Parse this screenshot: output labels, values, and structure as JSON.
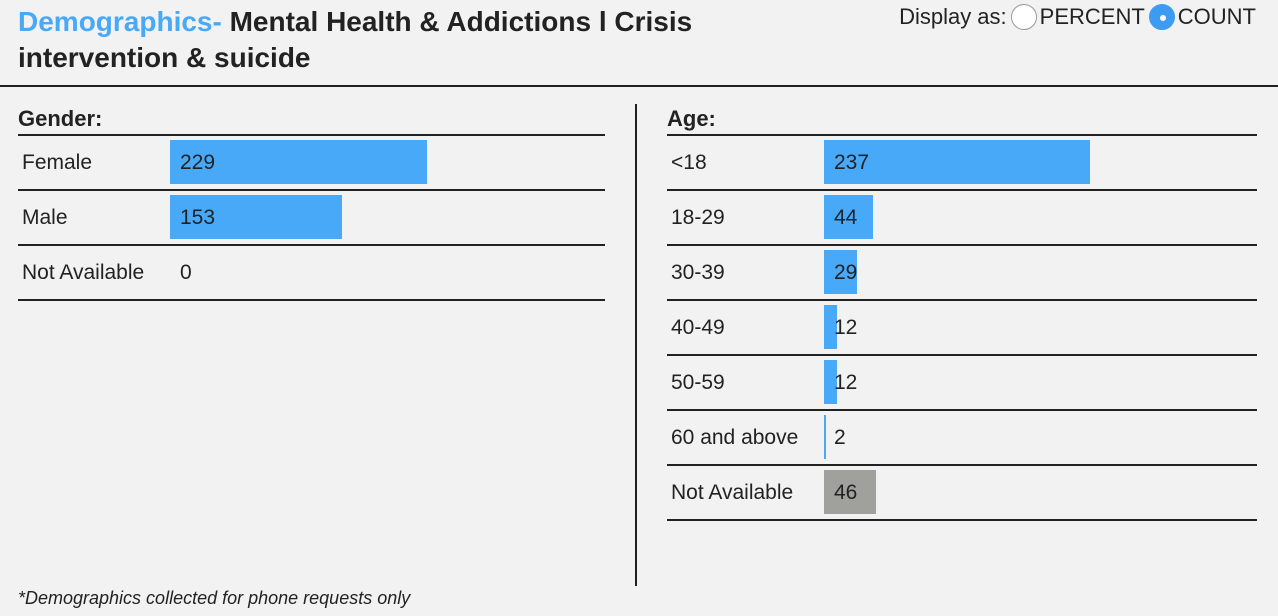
{
  "title": {
    "prefix": "Demographics-",
    "main": "Mental Health & Addictions l Crisis intervention & suicide"
  },
  "display": {
    "label": "Display as:",
    "options": [
      {
        "label": "PERCENT",
        "selected": false
      },
      {
        "label": "COUNT",
        "selected": true
      }
    ]
  },
  "colors": {
    "bar": "#48a9f8",
    "not_available_bar": "#a0a09c",
    "accent": "#48a9f8"
  },
  "footnote": "*Demographics collected for phone requests only",
  "chart_data": [
    {
      "type": "bar",
      "title": "Gender:",
      "categories": [
        "Female",
        "Male",
        "Not Available"
      ],
      "values": [
        229,
        153,
        0
      ]
    },
    {
      "type": "bar",
      "title": "Age:",
      "categories": [
        "<18",
        "18-29",
        "30-39",
        "40-49",
        "50-59",
        "60 and above",
        "Not Available"
      ],
      "values": [
        237,
        44,
        29,
        12,
        12,
        2,
        46
      ]
    }
  ]
}
